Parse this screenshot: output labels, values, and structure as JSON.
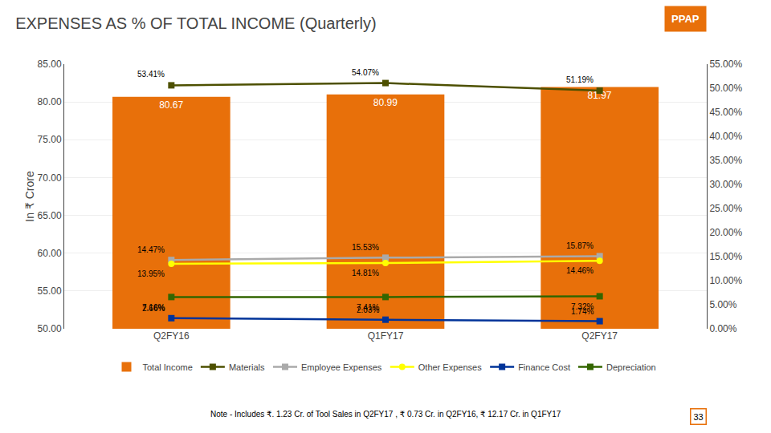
{
  "chart_data": {
    "type": "bar",
    "title": "EXPENSES AS % OF TOTAL INCOME (Quarterly)",
    "categories": [
      "Q2FY16",
      "Q1FY17",
      "Q2FY17"
    ],
    "series": [
      {
        "name": "Total Income",
        "type": "bar",
        "color": "#E8700A",
        "values": [
          80.67,
          80.99,
          81.97
        ],
        "data_labels": true
      },
      {
        "name": "Materials",
        "type": "line",
        "color": "#4D5000",
        "marker": "square",
        "values": [
          82.2,
          82.5,
          81.5
        ],
        "annotations": [
          "53.41%",
          "54.07%",
          "51.19%"
        ]
      },
      {
        "name": "Employee Expenses",
        "type": "line",
        "color": "#AAAAAA",
        "marker": "square",
        "values": [
          59.1,
          59.4,
          59.6
        ],
        "annotations": [
          "14.47%",
          "15.53%",
          "15.87%"
        ]
      },
      {
        "name": "Other Expenses",
        "type": "line",
        "color": "#FFFF00",
        "marker": "circle",
        "values": [
          58.6,
          58.7,
          59.0
        ],
        "annotations": [
          "13.95%",
          "14.81%",
          "14.46%"
        ]
      },
      {
        "name": "Finance Cost",
        "type": "line",
        "color": "#003399",
        "marker": "square",
        "values": [
          51.4,
          51.2,
          51.0
        ],
        "annotations": [
          "2.66%",
          "2.03%",
          "1.74%"
        ]
      },
      {
        "name": "Depreciation",
        "type": "line",
        "color": "#336600",
        "marker": "square",
        "values": [
          54.2,
          54.2,
          54.3
        ],
        "annotations": [
          "7.16%",
          "7.41%",
          "7.32%"
        ]
      }
    ],
    "ylabel": "In ₹ Crore",
    "ylim": [
      50.0,
      85.0
    ],
    "yticks": [
      {
        "value": 50.0,
        "label": "50.00"
      },
      {
        "value": 55.0,
        "label": "55.00"
      },
      {
        "value": 60.0,
        "label": "60.00"
      },
      {
        "value": 65.0,
        "label": "65.00"
      },
      {
        "value": 70.0,
        "label": "70.00"
      },
      {
        "value": 75.0,
        "label": "75.00"
      },
      {
        "value": 80.0,
        "label": "80.00"
      },
      {
        "value": 85.0,
        "label": "85.00"
      }
    ],
    "y2lim": [
      0,
      55
    ],
    "y2ticks": [
      {
        "value": 0,
        "label": "0.00%"
      },
      {
        "value": 5,
        "label": "5.00%"
      },
      {
        "value": 10,
        "label": "10.00%"
      },
      {
        "value": 15,
        "label": "15.00%"
      },
      {
        "value": 20,
        "label": "20.00%"
      },
      {
        "value": 25,
        "label": "25.00%"
      },
      {
        "value": 30,
        "label": "30.00%"
      },
      {
        "value": 35,
        "label": "35.00%"
      },
      {
        "value": 40,
        "label": "40.00%"
      },
      {
        "value": 45,
        "label": "45.00%"
      },
      {
        "value": 50,
        "label": "50.00%"
      },
      {
        "value": 55,
        "label": "55.00%"
      }
    ],
    "grid": true,
    "legend": "bottom",
    "note": "Note - Includes ₹. 1.23 Cr. of Tool Sales in Q2FY17 , ₹ 0.73 Cr. in Q2FY16, ₹ 12.17 Cr. in Q1FY17",
    "logo_text": "PPAP",
    "page_number": "33"
  }
}
